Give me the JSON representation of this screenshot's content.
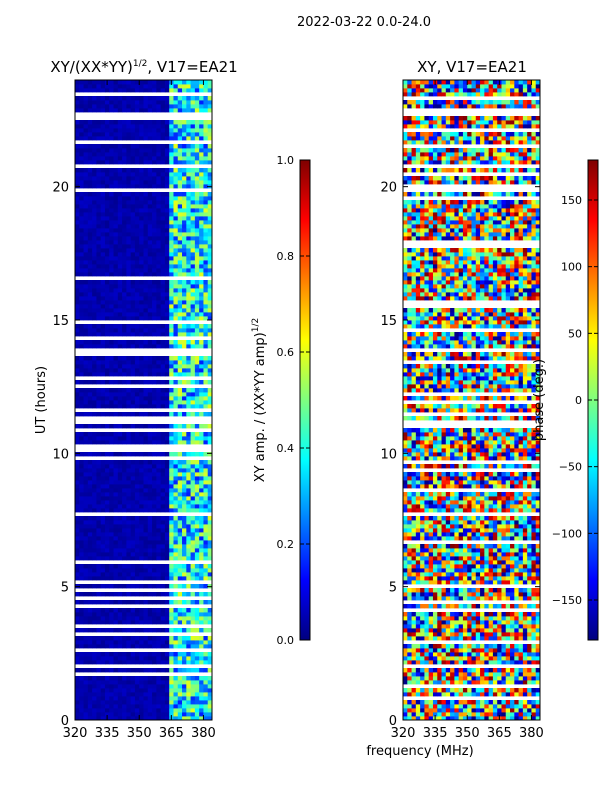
{
  "suptitle": "2022-03-22 0.0-24.0",
  "shared_xlabel": "frequency (MHz)",
  "colors": {
    "jet": [
      "#00007f",
      "#0000ff",
      "#007fff",
      "#00ffff",
      "#7fff7f",
      "#ffff00",
      "#ff7f00",
      "#ff0000",
      "#7f0000"
    ]
  },
  "chart_data": [
    {
      "type": "heatmap",
      "title_main": "XY/(XX*YY)",
      "title_sup": "1/2",
      "title_rest": ", V17=EA21",
      "xlabel": "",
      "ylabel": "UT (hours)",
      "xlim": [
        320,
        384
      ],
      "ylim": [
        0,
        24
      ],
      "xticks": [
        320,
        335,
        350,
        365,
        380
      ],
      "xtick_labels": [
        "320",
        "335",
        "350",
        "365",
        "380"
      ],
      "yticks": [
        0,
        5,
        10,
        15,
        20
      ],
      "ytick_labels": [
        "0",
        "5",
        "10",
        "15",
        "20"
      ],
      "colorbar": {
        "label_main": "XY amp. / (XX*YY amp)",
        "label_sup": "1/2",
        "range": [
          0.0,
          1.0
        ],
        "ticks": [
          0.0,
          0.2,
          0.4,
          0.6,
          0.8,
          1.0
        ],
        "tick_labels": [
          "0.0",
          "0.2",
          "0.4",
          "0.6",
          "0.8",
          "1.0"
        ]
      }
    },
    {
      "type": "heatmap",
      "title_main": "XY, V17=EA21",
      "xlabel": "frequency (MHz)",
      "ylabel": "",
      "xlim": [
        320,
        384
      ],
      "ylim": [
        0,
        24
      ],
      "xticks": [
        320,
        335,
        350,
        365,
        380
      ],
      "xtick_labels": [
        "320",
        "335",
        "350",
        "365",
        "380"
      ],
      "yticks": [
        0,
        5,
        10,
        15,
        20
      ],
      "ytick_labels": [
        "0",
        "5",
        "10",
        "15",
        "20"
      ],
      "colorbar": {
        "label_main": "phase (deg.)",
        "range": [
          -180,
          180
        ],
        "ticks": [
          -150,
          -100,
          -50,
          0,
          50,
          100,
          150
        ],
        "tick_labels": [
          "−150",
          "−100",
          "−50",
          "0",
          "50",
          "100",
          "150"
        ]
      }
    }
  ]
}
